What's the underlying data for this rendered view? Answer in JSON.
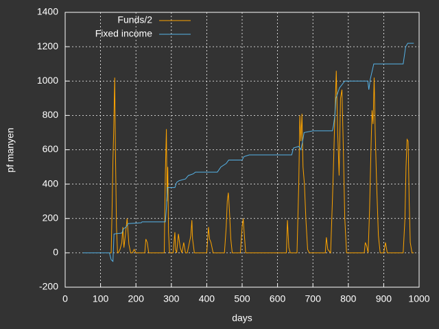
{
  "chart_data": {
    "type": "line",
    "xlabel": "days",
    "ylabel": "pf manyen",
    "xlim": [
      0,
      1000
    ],
    "xticks": [
      0,
      100,
      200,
      300,
      400,
      500,
      600,
      700,
      800,
      900,
      1000
    ],
    "ylim": [
      -200,
      1400
    ],
    "yticks": [
      -200,
      0,
      200,
      400,
      600,
      800,
      1000,
      1200,
      1400
    ],
    "grid": true,
    "legend": "top-left",
    "series": [
      {
        "name": "Funds/2",
        "color": "#ffa500",
        "x": [
          125,
          130,
          133,
          135,
          137,
          140,
          142,
          145,
          148,
          150,
          155,
          160,
          163,
          166,
          170,
          175,
          180,
          185,
          190,
          195,
          200,
          205,
          210,
          215,
          225,
          228,
          232,
          236,
          240,
          280,
          283,
          286,
          288,
          290,
          292,
          295,
          305,
          310,
          312,
          315,
          320,
          325,
          330,
          335,
          340,
          345,
          355,
          358,
          360,
          365,
          370,
          400,
          405,
          408,
          412,
          418,
          450,
          455,
          458,
          461,
          464,
          468,
          472,
          495,
          500,
          503,
          506,
          510,
          625,
          628,
          632,
          636,
          640,
          655,
          660,
          663,
          666,
          669,
          672,
          676,
          680,
          685,
          690,
          735,
          738,
          742,
          750,
          755,
          758,
          762,
          766,
          770,
          774,
          778,
          782,
          786,
          790,
          795,
          845,
          848,
          852,
          856,
          860,
          864,
          867,
          870,
          873,
          876,
          880,
          885,
          890,
          900,
          905,
          910,
          955,
          960,
          963,
          966,
          969,
          972,
          975,
          980,
          985
        ],
        "values": [
          0,
          0,
          300,
          540,
          700,
          1020,
          600,
          150,
          0,
          0,
          20,
          60,
          150,
          30,
          100,
          200,
          50,
          0,
          0,
          20,
          0,
          0,
          0,
          0,
          0,
          80,
          60,
          0,
          0,
          0,
          460,
          720,
          300,
          500,
          120,
          0,
          0,
          120,
          20,
          0,
          110,
          30,
          0,
          60,
          0,
          0,
          100,
          190,
          80,
          0,
          0,
          0,
          150,
          80,
          60,
          0,
          0,
          150,
          300,
          350,
          250,
          80,
          0,
          0,
          150,
          200,
          110,
          0,
          0,
          190,
          30,
          0,
          0,
          0,
          400,
          800,
          650,
          810,
          500,
          400,
          200,
          20,
          0,
          0,
          90,
          20,
          0,
          300,
          500,
          800,
          1060,
          700,
          450,
          900,
          950,
          600,
          200,
          0,
          0,
          60,
          40,
          0,
          250,
          600,
          830,
          750,
          1020,
          700,
          400,
          100,
          0,
          0,
          60,
          0,
          0,
          200,
          500,
          660,
          650,
          300,
          60,
          0,
          0
        ]
      },
      {
        "name": "Fixed income",
        "color": "#56b4e9",
        "x": [
          50,
          125,
          130,
          135,
          138,
          160,
          165,
          172,
          178,
          215,
          217,
          283,
          286,
          289,
          310,
          315,
          322,
          340,
          348,
          362,
          368,
          430,
          440,
          455,
          462,
          500,
          505,
          520,
          640,
          645,
          660,
          666,
          670,
          675,
          700,
          755,
          758,
          762,
          765,
          775,
          790,
          855,
          858,
          862,
          872,
          955,
          962,
          968,
          985
        ],
        "values": [
          0,
          0,
          -40,
          -50,
          110,
          115,
          140,
          150,
          170,
          175,
          180,
          180,
          260,
          380,
          380,
          410,
          420,
          430,
          450,
          460,
          470,
          470,
          500,
          520,
          540,
          540,
          560,
          570,
          570,
          610,
          620,
          600,
          640,
          700,
          710,
          710,
          740,
          800,
          900,
          960,
          1000,
          1000,
          950,
          1010,
          1100,
          1100,
          1200,
          1220,
          1220
        ]
      }
    ]
  }
}
